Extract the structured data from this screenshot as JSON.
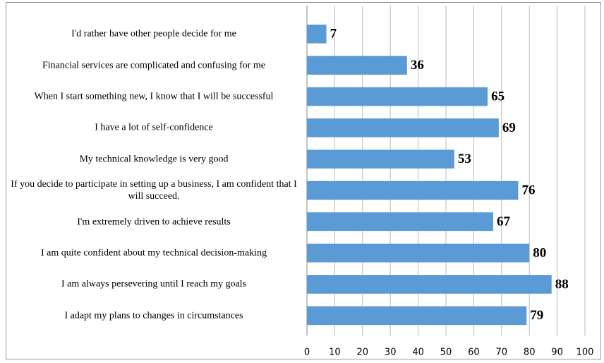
{
  "chart_data": {
    "type": "bar",
    "orientation": "horizontal",
    "categories": [
      "I'd rather have other people decide for me",
      "Financial services are complicated and confusing for me",
      "When I start something new, I know that I will be successful",
      "I have a lot of self-confidence",
      "My technical knowledge is very good",
      "If you decide to participate in setting up a business, I am confident that I will succeed.",
      "I'm extremely driven to achieve results",
      "I am quite confident about my technical decision-making",
      "I am always persevering until I reach my goals",
      "I adapt my plans to changes in circumstances"
    ],
    "values": [
      7,
      36,
      65,
      69,
      53,
      76,
      67,
      80,
      88,
      79
    ],
    "color": "#5b9bd5",
    "xlim": [
      0,
      100
    ],
    "xticks": [
      0,
      10,
      20,
      30,
      40,
      50,
      60,
      70,
      80,
      90,
      100
    ],
    "grid": true
  }
}
